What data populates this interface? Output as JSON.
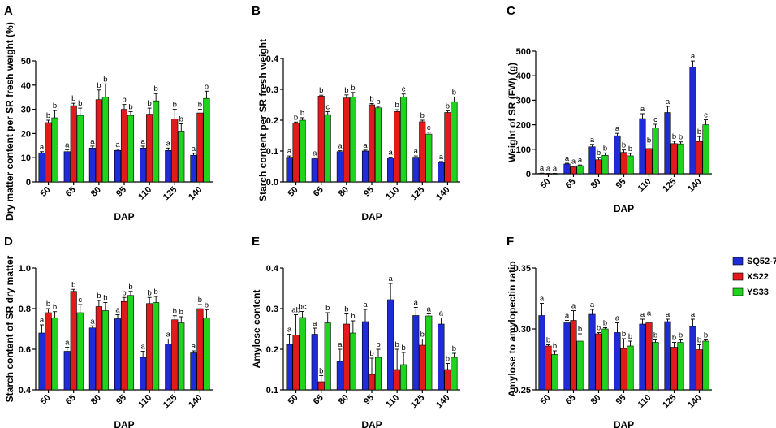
{
  "legend": [
    {
      "name": "SQ52-7",
      "color": "#1f2bd6"
    },
    {
      "name": "XS22",
      "color": "#e31a1c"
    },
    {
      "name": "YS33",
      "color": "#1fd31f"
    }
  ],
  "chart_data": [
    {
      "panel": "A",
      "type": "bar",
      "categories": [
        "50",
        "65",
        "80",
        "95",
        "110",
        "125",
        "140"
      ],
      "xlabel": "DAP",
      "ylabel": "Dry matter content per SR fresh weight (%)",
      "ylim": [
        0,
        50
      ],
      "yticks": [
        0,
        10,
        20,
        30,
        40,
        50
      ],
      "ytick_labels": [
        "0",
        "10",
        "20",
        "30",
        "40",
        "50"
      ],
      "series": [
        {
          "name": "SQ52-7",
          "values": [
            12,
            12.5,
            14,
            13,
            14,
            13,
            11
          ],
          "errors": [
            0.5,
            0.8,
            0.8,
            0.5,
            0.8,
            1,
            0.8
          ],
          "letters": [
            "a",
            "a",
            "a",
            "a",
            "a",
            "a",
            "a"
          ]
        },
        {
          "name": "XS22",
          "values": [
            24.5,
            31.5,
            34,
            30,
            28,
            26,
            28.5
          ],
          "errors": [
            1,
            1,
            4,
            2,
            2.5,
            4,
            1.5
          ],
          "letters": [
            "b",
            "b",
            "b",
            "b",
            "b",
            "b",
            "b"
          ]
        },
        {
          "name": "YS33",
          "values": [
            26.5,
            27.5,
            35,
            27.5,
            33.5,
            21,
            34.5
          ],
          "errors": [
            3,
            3,
            5.5,
            1.5,
            3,
            3,
            3
          ],
          "letters": [
            "b",
            "b",
            "b",
            "b",
            "b",
            "b",
            "b"
          ]
        }
      ]
    },
    {
      "panel": "B",
      "type": "bar",
      "categories": [
        "50",
        "65",
        "80",
        "95",
        "110",
        "125",
        "140"
      ],
      "xlabel": "DAP",
      "ylabel": "Starch content per SR fresh weight",
      "ylim": [
        0,
        0.4
      ],
      "yticks": [
        0,
        0.1,
        0.2,
        0.3,
        0.4
      ],
      "ytick_labels": [
        "0.0",
        "0.1",
        "0.2",
        "0.3",
        "0.4"
      ],
      "series": [
        {
          "name": "SQ52-7",
          "values": [
            0.08,
            0.075,
            0.098,
            0.1,
            0.077,
            0.08,
            0.063
          ],
          "errors": [
            0.004,
            0.003,
            0.003,
            0.003,
            0.003,
            0.004,
            0.003
          ],
          "letters": [
            "a",
            "a",
            "a",
            "a",
            "a",
            "a",
            "a"
          ]
        },
        {
          "name": "XS22",
          "values": [
            0.19,
            0.278,
            0.272,
            0.25,
            0.228,
            0.195,
            0.225
          ],
          "errors": [
            0.004,
            0.003,
            0.01,
            0.004,
            0.006,
            0.005,
            0.005
          ],
          "letters": [
            "b",
            "b",
            "b",
            "b",
            "b",
            "b",
            "b"
          ]
        },
        {
          "name": "YS33",
          "values": [
            0.2,
            0.218,
            0.275,
            0.24,
            0.275,
            0.155,
            0.26
          ],
          "errors": [
            0.008,
            0.01,
            0.015,
            0.005,
            0.01,
            0.006,
            0.015
          ],
          "letters": [
            "b",
            "c",
            "b",
            "b",
            "c",
            "c",
            "b"
          ]
        }
      ]
    },
    {
      "panel": "C",
      "type": "bar",
      "categories": [
        "50",
        "65",
        "80",
        "95",
        "110",
        "125",
        "140"
      ],
      "xlabel": "DAP",
      "ylabel": "Weight of SR (FW) (g)",
      "ylim": [
        0,
        500
      ],
      "yticks": [
        0,
        100,
        200,
        300,
        400,
        500
      ],
      "ytick_labels": [
        "0",
        "100",
        "200",
        "300",
        "400",
        "500"
      ],
      "series": [
        {
          "name": "SQ52-7",
          "values": [
            2,
            40,
            110,
            155,
            225,
            250,
            435
          ],
          "errors": [
            0.5,
            3,
            10,
            10,
            20,
            25,
            25
          ],
          "letters": [
            "a",
            "a",
            "a",
            "a",
            "a",
            "a",
            "a"
          ]
        },
        {
          "name": "XS22",
          "values": [
            1,
            28,
            57,
            87,
            103,
            123,
            132
          ],
          "errors": [
            0.5,
            3,
            10,
            10,
            15,
            10,
            20
          ],
          "letters": [
            "a",
            "a",
            "b",
            "b",
            "b",
            "b",
            "b"
          ]
        },
        {
          "name": "YS33",
          "values": [
            1,
            33,
            75,
            73,
            187,
            122,
            200
          ],
          "errors": [
            0.5,
            3,
            10,
            10,
            15,
            8,
            20
          ],
          "letters": [
            "a",
            "a",
            "b",
            "b",
            "c",
            "b",
            "c"
          ]
        }
      ]
    },
    {
      "panel": "D",
      "type": "bar",
      "categories": [
        "50",
        "65",
        "80",
        "95",
        "110",
        "125",
        "140"
      ],
      "xlabel": "DAP",
      "ylabel": "Starch content of SR dry matter",
      "ylim": [
        0.4,
        1.0
      ],
      "yticks": [
        0.4,
        0.6,
        0.8,
        1.0
      ],
      "ytick_labels": [
        "0.4",
        "0.6",
        "0.8",
        "1.0"
      ],
      "series": [
        {
          "name": "SQ52-7",
          "values": [
            0.68,
            0.59,
            0.705,
            0.75,
            0.56,
            0.625,
            0.582
          ],
          "errors": [
            0.04,
            0.02,
            0.01,
            0.02,
            0.03,
            0.025,
            0.01
          ],
          "letters": [
            "a",
            "a",
            "a",
            "a",
            "a",
            "a",
            "a"
          ]
        },
        {
          "name": "XS22",
          "values": [
            0.78,
            0.885,
            0.81,
            0.835,
            0.825,
            0.745,
            0.8
          ],
          "errors": [
            0.02,
            0.01,
            0.03,
            0.02,
            0.03,
            0.02,
            0.02
          ],
          "letters": [
            "b",
            "b",
            "b",
            "b",
            "b",
            "b",
            "b"
          ]
        },
        {
          "name": "YS33",
          "values": [
            0.755,
            0.78,
            0.79,
            0.865,
            0.83,
            0.73,
            0.755
          ],
          "errors": [
            0.03,
            0.04,
            0.04,
            0.02,
            0.03,
            0.03,
            0.04
          ],
          "letters": [
            "b",
            "c",
            "b",
            "b",
            "b",
            "b",
            "b"
          ]
        }
      ]
    },
    {
      "panel": "E",
      "type": "bar",
      "categories": [
        "50",
        "65",
        "80",
        "95",
        "110",
        "125",
        "140"
      ],
      "xlabel": "DAP",
      "ylabel": "Amylose content",
      "ylim": [
        0.1,
        0.4
      ],
      "yticks": [
        0.1,
        0.2,
        0.3,
        0.4
      ],
      "ytick_labels": [
        "0.1",
        "0.2",
        "0.3",
        "0.4"
      ],
      "series": [
        {
          "name": "SQ52-7",
          "values": [
            0.212,
            0.237,
            0.17,
            0.268,
            0.322,
            0.283,
            0.262
          ],
          "errors": [
            0.025,
            0.015,
            0.03,
            0.03,
            0.04,
            0.02,
            0.015
          ],
          "letters": [
            "a",
            "a",
            "a",
            "a",
            "a",
            "a",
            "a"
          ]
        },
        {
          "name": "XS22",
          "values": [
            0.235,
            0.12,
            0.262,
            0.138,
            0.15,
            0.21,
            0.15
          ],
          "errors": [
            0.05,
            0.015,
            0.025,
            0.04,
            0.05,
            0.015,
            0.015
          ],
          "letters": [
            "ab",
            "b",
            "b",
            "b",
            "b",
            "b",
            "b"
          ]
        },
        {
          "name": "YS33",
          "values": [
            0.278,
            0.265,
            0.24,
            0.18,
            0.162,
            0.282,
            0.18
          ],
          "errors": [
            0.015,
            0.025,
            0.03,
            0.02,
            0.03,
            0.005,
            0.01
          ],
          "letters": [
            "bc",
            "b",
            "b",
            "b",
            "b",
            "a",
            "b"
          ]
        }
      ]
    },
    {
      "panel": "F",
      "type": "bar",
      "categories": [
        "50",
        "65",
        "80",
        "95",
        "110",
        "125",
        "140"
      ],
      "xlabel": "DAP",
      "ylabel": "Amylose to amylopectin ratio",
      "ylim": [
        0.25,
        0.35
      ],
      "yticks": [
        0.25,
        0.3,
        0.35
      ],
      "ytick_labels": [
        "0.25",
        "0.30",
        "0.35"
      ],
      "series": [
        {
          "name": "SQ52-7",
          "values": [
            0.311,
            0.305,
            0.312,
            0.297,
            0.304,
            0.306,
            0.302
          ],
          "errors": [
            0.01,
            0.002,
            0.004,
            0.008,
            0.004,
            0.002,
            0.006
          ],
          "letters": [
            "a",
            "a",
            "a",
            "a",
            "a",
            "a",
            "a"
          ]
        },
        {
          "name": "XS22",
          "values": [
            0.286,
            0.307,
            0.296,
            0.284,
            0.305,
            0.285,
            0.283
          ],
          "errors": [
            0.001,
            0.008,
            0.001,
            0.008,
            0.004,
            0.004,
            0.004
          ],
          "letters": [
            "b",
            "a",
            "b",
            "b",
            "a",
            "b",
            "b"
          ]
        },
        {
          "name": "YS33",
          "values": [
            0.279,
            0.29,
            0.3,
            0.286,
            0.289,
            0.289,
            0.29
          ],
          "errors": [
            0.003,
            0.006,
            0.001,
            0.004,
            0.002,
            0.002,
            0.001
          ],
          "letters": [
            "b",
            "b",
            "b",
            "b",
            "b",
            "b",
            "b"
          ]
        }
      ]
    }
  ]
}
